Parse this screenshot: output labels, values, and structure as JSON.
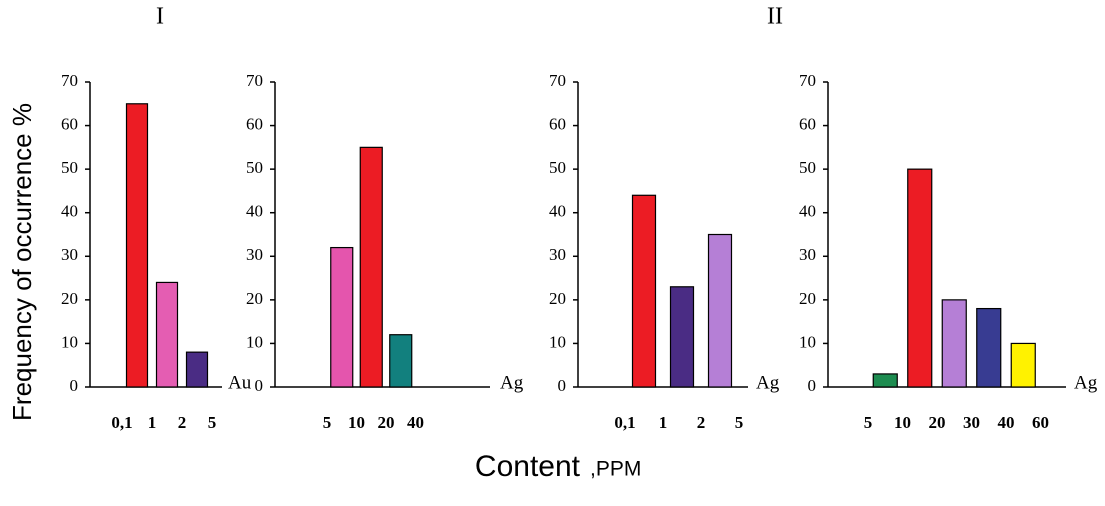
{
  "group_labels": [
    "I",
    "II"
  ],
  "ylabel": "Frequency of occurrence %",
  "xlabel": "Content",
  "xunit": ",PPM",
  "chart_data": [
    {
      "type": "bar",
      "element": "Au",
      "x_labels": [
        "0,1",
        "1",
        "2",
        "5"
      ],
      "values": [
        65,
        24,
        8
      ],
      "colors": [
        "#ec1c24",
        "#e45db2",
        "#4a2c84"
      ],
      "ylim": [
        0,
        70
      ],
      "yticks": [
        0,
        10,
        20,
        30,
        40,
        50,
        60,
        70
      ]
    },
    {
      "type": "bar",
      "element": "Ag",
      "x_labels": [
        "5",
        "10",
        "20",
        "40"
      ],
      "values": [
        32,
        55,
        12
      ],
      "colors": [
        "#e455ad",
        "#ec1c24",
        "#12807e"
      ],
      "ylim": [
        0,
        70
      ],
      "yticks": [
        0,
        10,
        20,
        30,
        40,
        50,
        60,
        70
      ]
    },
    {
      "type": "bar",
      "element": "Ag",
      "x_labels": [
        "0,1",
        "1",
        "2",
        "5"
      ],
      "values": [
        44,
        23,
        35
      ],
      "colors": [
        "#ec1c24",
        "#4a2c84",
        "#b57fd6"
      ],
      "ylim": [
        0,
        70
      ],
      "yticks": [
        0,
        10,
        20,
        30,
        40,
        50,
        60,
        70
      ]
    },
    {
      "type": "bar",
      "element": "Ag",
      "x_labels": [
        "5",
        "10",
        "20",
        "30",
        "40",
        "60"
      ],
      "values": [
        3,
        50,
        20,
        18,
        10
      ],
      "colors": [
        "#1d8c50",
        "#ec1c24",
        "#b57fd6",
        "#383c92",
        "#fff200"
      ],
      "ylim": [
        0,
        70
      ],
      "yticks": [
        0,
        10,
        20,
        30,
        40,
        50,
        60,
        70
      ]
    }
  ]
}
